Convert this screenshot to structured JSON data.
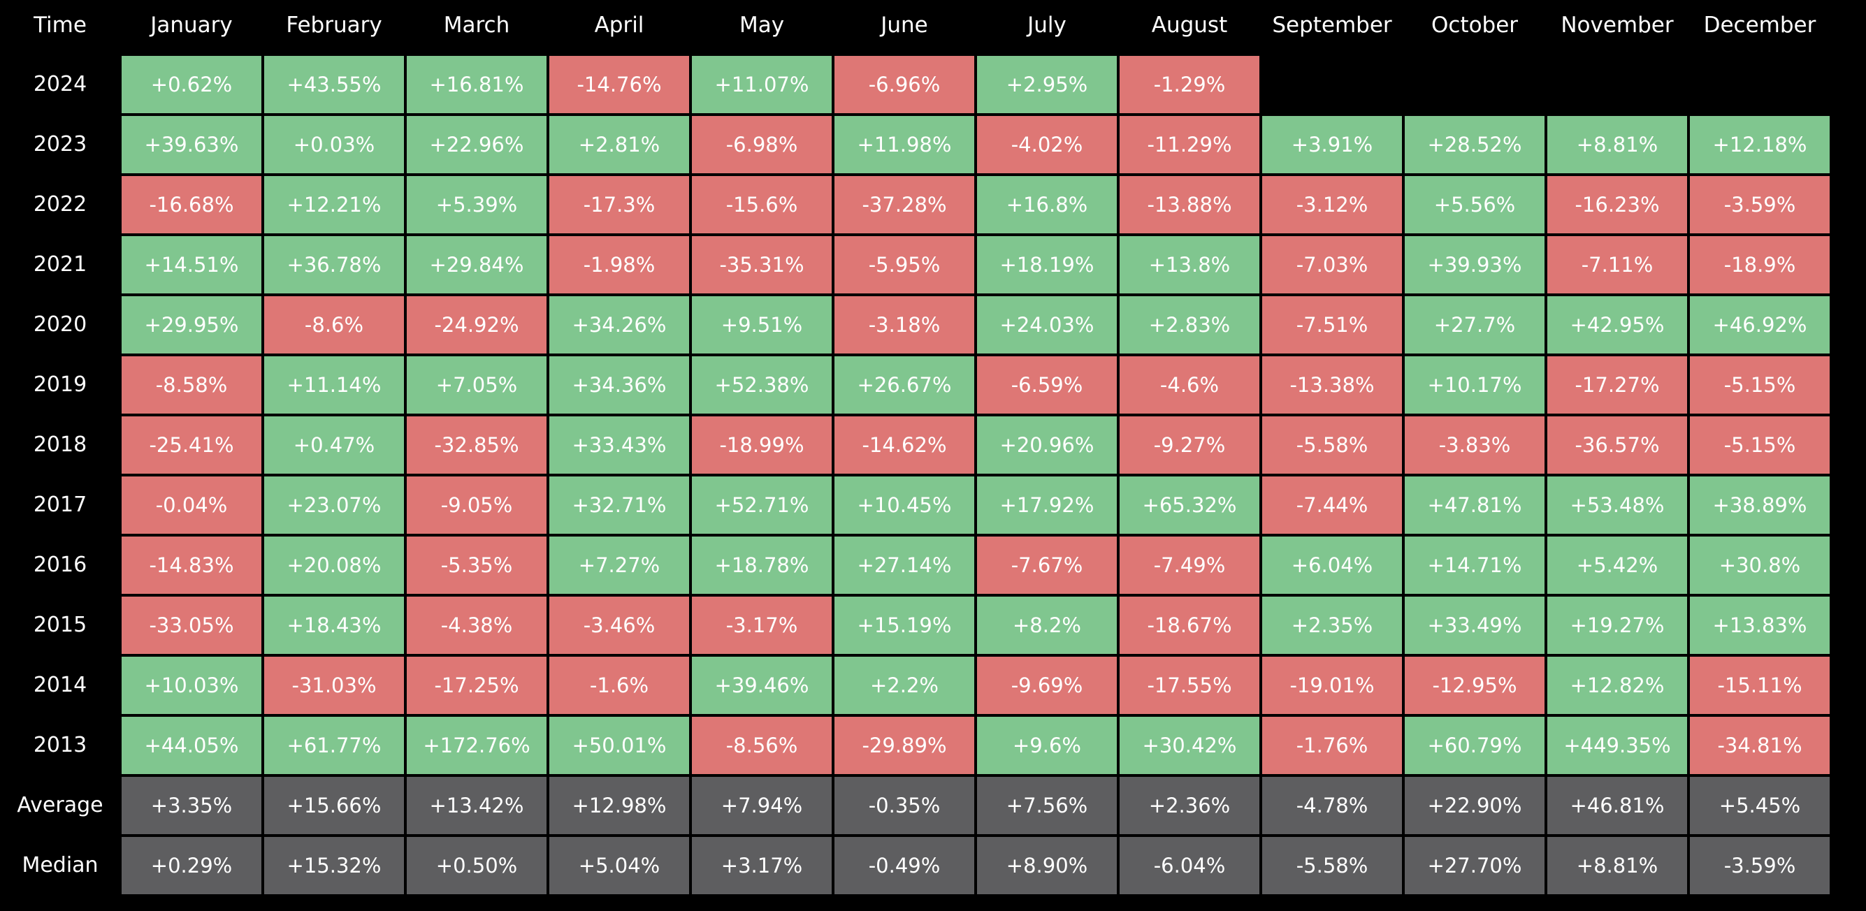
{
  "colors": {
    "background": "#000000",
    "positive": "#80c68f",
    "negative": "#de7775",
    "summary": "#5e5e60",
    "text": "#ffffff"
  },
  "chart_data": {
    "type": "heatmap",
    "corner_label": "Time",
    "columns": [
      "January",
      "February",
      "March",
      "April",
      "May",
      "June",
      "July",
      "August",
      "September",
      "October",
      "November",
      "December"
    ],
    "rows": [
      {
        "label": "2024",
        "values": [
          "+0.62%",
          "+43.55%",
          "+16.81%",
          "-14.76%",
          "+11.07%",
          "-6.96%",
          "+2.95%",
          "-1.29%",
          null,
          null,
          null,
          null
        ]
      },
      {
        "label": "2023",
        "values": [
          "+39.63%",
          "+0.03%",
          "+22.96%",
          "+2.81%",
          "-6.98%",
          "+11.98%",
          "-4.02%",
          "-11.29%",
          "+3.91%",
          "+28.52%",
          "+8.81%",
          "+12.18%"
        ]
      },
      {
        "label": "2022",
        "values": [
          "-16.68%",
          "+12.21%",
          "+5.39%",
          "-17.3%",
          "-15.6%",
          "-37.28%",
          "+16.8%",
          "-13.88%",
          "-3.12%",
          "+5.56%",
          "-16.23%",
          "-3.59%"
        ]
      },
      {
        "label": "2021",
        "values": [
          "+14.51%",
          "+36.78%",
          "+29.84%",
          "-1.98%",
          "-35.31%",
          "-5.95%",
          "+18.19%",
          "+13.8%",
          "-7.03%",
          "+39.93%",
          "-7.11%",
          "-18.9%"
        ]
      },
      {
        "label": "2020",
        "values": [
          "+29.95%",
          "-8.6%",
          "-24.92%",
          "+34.26%",
          "+9.51%",
          "-3.18%",
          "+24.03%",
          "+2.83%",
          "-7.51%",
          "+27.7%",
          "+42.95%",
          "+46.92%"
        ]
      },
      {
        "label": "2019",
        "values": [
          "-8.58%",
          "+11.14%",
          "+7.05%",
          "+34.36%",
          "+52.38%",
          "+26.67%",
          "-6.59%",
          "-4.6%",
          "-13.38%",
          "+10.17%",
          "-17.27%",
          "-5.15%"
        ]
      },
      {
        "label": "2018",
        "values": [
          "-25.41%",
          "+0.47%",
          "-32.85%",
          "+33.43%",
          "-18.99%",
          "-14.62%",
          "+20.96%",
          "-9.27%",
          "-5.58%",
          "-3.83%",
          "-36.57%",
          "-5.15%"
        ]
      },
      {
        "label": "2017",
        "values": [
          "-0.04%",
          "+23.07%",
          "-9.05%",
          "+32.71%",
          "+52.71%",
          "+10.45%",
          "+17.92%",
          "+65.32%",
          "-7.44%",
          "+47.81%",
          "+53.48%",
          "+38.89%"
        ]
      },
      {
        "label": "2016",
        "values": [
          "-14.83%",
          "+20.08%",
          "-5.35%",
          "+7.27%",
          "+18.78%",
          "+27.14%",
          "-7.67%",
          "-7.49%",
          "+6.04%",
          "+14.71%",
          "+5.42%",
          "+30.8%"
        ]
      },
      {
        "label": "2015",
        "values": [
          "-33.05%",
          "+18.43%",
          "-4.38%",
          "-3.46%",
          "-3.17%",
          "+15.19%",
          "+8.2%",
          "-18.67%",
          "+2.35%",
          "+33.49%",
          "+19.27%",
          "+13.83%"
        ]
      },
      {
        "label": "2014",
        "values": [
          "+10.03%",
          "-31.03%",
          "-17.25%",
          "-1.6%",
          "+39.46%",
          "+2.2%",
          "-9.69%",
          "-17.55%",
          "-19.01%",
          "-12.95%",
          "+12.82%",
          "-15.11%"
        ]
      },
      {
        "label": "2013",
        "values": [
          "+44.05%",
          "+61.77%",
          "+172.76%",
          "+50.01%",
          "-8.56%",
          "-29.89%",
          "+9.6%",
          "+30.42%",
          "-1.76%",
          "+60.79%",
          "+449.35%",
          "-34.81%"
        ]
      }
    ],
    "summary_rows": [
      {
        "label": "Average",
        "values": [
          "+3.35%",
          "+15.66%",
          "+13.42%",
          "+12.98%",
          "+7.94%",
          "-0.35%",
          "+7.56%",
          "+2.36%",
          "-4.78%",
          "+22.90%",
          "+46.81%",
          "+5.45%"
        ]
      },
      {
        "label": "Median",
        "values": [
          "+0.29%",
          "+15.32%",
          "+0.50%",
          "+5.04%",
          "+3.17%",
          "-0.49%",
          "+8.90%",
          "-6.04%",
          "-5.58%",
          "+27.70%",
          "+8.81%",
          "-3.59%"
        ]
      }
    ]
  }
}
